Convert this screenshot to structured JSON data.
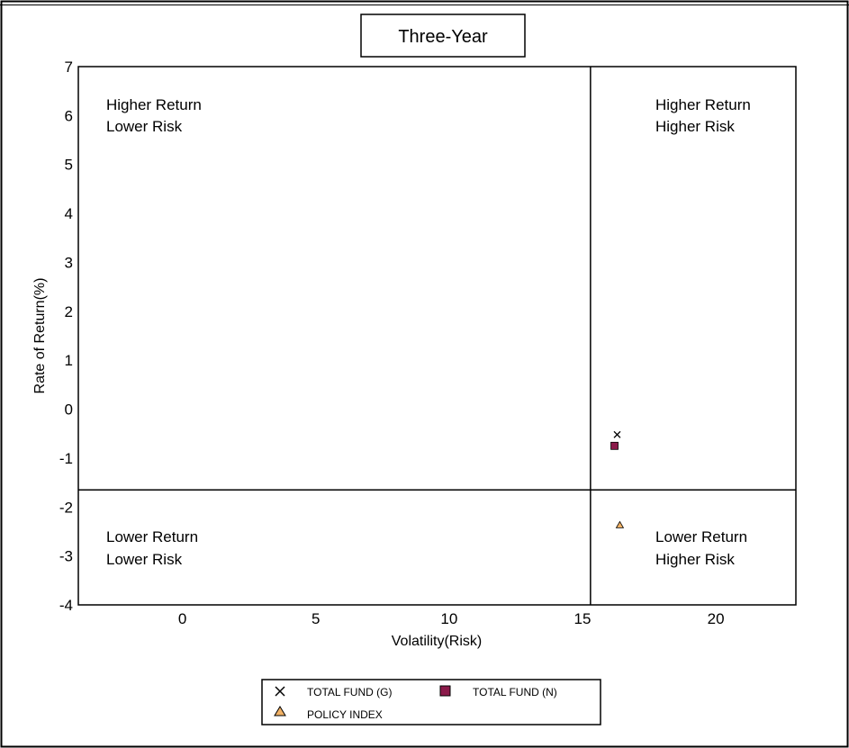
{
  "chart_data": {
    "type": "scatter",
    "title": "Three-Year",
    "xlabel": "Volatility(Risk)",
    "ylabel": "Rate of Return(%)",
    "xlim": [
      -3.9,
      23.0
    ],
    "ylim": [
      -4,
      7
    ],
    "x_ticks": [
      0,
      5,
      10,
      15,
      20
    ],
    "y_ticks": [
      7,
      6,
      5,
      4,
      3,
      2,
      1,
      0,
      -1,
      -2,
      -3,
      -4
    ],
    "divider_x": 15.3,
    "divider_y": -1.65,
    "grid": false,
    "legend_position": "bottom-center",
    "quadrant_labels": {
      "top_left": [
        "Higher Return",
        "Lower Risk"
      ],
      "top_right": [
        "Higher Return",
        "Higher Risk"
      ],
      "bottom_left": [
        "Lower Return",
        "Lower Risk"
      ],
      "bottom_right": [
        "Lower Return",
        "Higher Risk"
      ]
    },
    "series": [
      {
        "name": "TOTAL FUND (G)",
        "marker": "x",
        "color": "#000000",
        "points": [
          {
            "x": 16.3,
            "y": -0.52
          }
        ]
      },
      {
        "name": "TOTAL FUND (N)",
        "marker": "square",
        "color": "#8b1a4a",
        "points": [
          {
            "x": 16.2,
            "y": -0.75
          }
        ]
      },
      {
        "name": "POLICY INDEX",
        "marker": "triangle",
        "color": "#f2b266",
        "points": [
          {
            "x": 16.4,
            "y": -2.37
          }
        ]
      }
    ]
  }
}
